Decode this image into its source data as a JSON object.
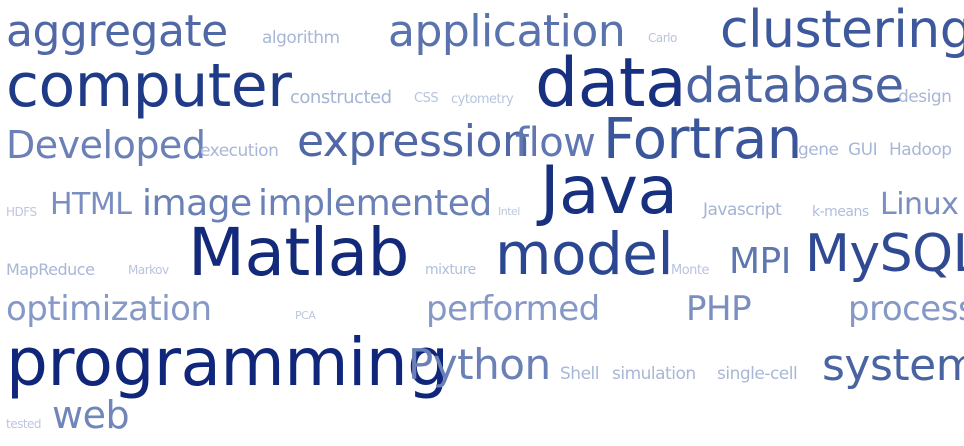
{
  "word_cloud": {
    "words": [
      {
        "text": "aggregate",
        "weight": 0.42,
        "color": "#5069a6"
      },
      {
        "text": "algorithm",
        "weight": 0.12,
        "color": "#a8b7d6"
      },
      {
        "text": "application",
        "weight": 0.42,
        "color": "#5a72ad"
      },
      {
        "text": "Carlo",
        "weight": 0.08,
        "color": "#b8c4de"
      },
      {
        "text": "clustering",
        "weight": 0.55,
        "color": "#3d589c"
      },
      {
        "text": "computer",
        "weight": 0.72,
        "color": "#1f3b88"
      },
      {
        "text": "data",
        "weight": 0.85,
        "color": "#17307f"
      },
      {
        "text": "database",
        "weight": 0.48,
        "color": "#4a64a2"
      },
      {
        "text": "constructed",
        "weight": 0.15,
        "color": "#a4b4d4"
      },
      {
        "text": "CSS",
        "weight": 0.08,
        "color": "#b8c4de"
      },
      {
        "text": "cytometry",
        "weight": 0.08,
        "color": "#b8c4de"
      },
      {
        "text": "design",
        "weight": 0.12,
        "color": "#a8b7d6"
      },
      {
        "text": "Developed",
        "weight": 0.4,
        "color": "#6a80b6"
      },
      {
        "text": "execution",
        "weight": 0.12,
        "color": "#a8b7d6"
      },
      {
        "text": "expression",
        "weight": 0.5,
        "color": "#5069a6"
      },
      {
        "text": "flow",
        "weight": 0.45,
        "color": "#6078b1"
      },
      {
        "text": "Fortran",
        "weight": 0.65,
        "color": "#3a559a"
      },
      {
        "text": "gene",
        "weight": 0.12,
        "color": "#a8b7d6"
      },
      {
        "text": "GUI",
        "weight": 0.12,
        "color": "#a8b7d6"
      },
      {
        "text": "Hadoop",
        "weight": 0.12,
        "color": "#a8b7d6"
      },
      {
        "text": "HDFS",
        "weight": 0.06,
        "color": "#bcc7df"
      },
      {
        "text": "HTML",
        "weight": 0.3,
        "color": "#7a8ebf"
      },
      {
        "text": "image",
        "weight": 0.38,
        "color": "#6a80b6"
      },
      {
        "text": "implemented",
        "weight": 0.38,
        "color": "#6a80b6"
      },
      {
        "text": "Intel",
        "weight": 0.06,
        "color": "#bcc7df"
      },
      {
        "text": "Java",
        "weight": 0.82,
        "color": "#17307f"
      },
      {
        "text": "Javascript",
        "weight": 0.15,
        "color": "#a4b4d4"
      },
      {
        "text": "k-means",
        "weight": 0.1,
        "color": "#b0bedb"
      },
      {
        "text": "Linux",
        "weight": 0.3,
        "color": "#7a8ebf"
      },
      {
        "text": "MapReduce",
        "weight": 0.12,
        "color": "#a8b7d6"
      },
      {
        "text": "Markov",
        "weight": 0.08,
        "color": "#b8c4de"
      },
      {
        "text": "Matlab",
        "weight": 0.9,
        "color": "#13297a"
      },
      {
        "text": "mixture",
        "weight": 0.1,
        "color": "#b0bedb"
      },
      {
        "text": "model",
        "weight": 0.65,
        "color": "#2c4791"
      },
      {
        "text": "Monte",
        "weight": 0.08,
        "color": "#b8c4de"
      },
      {
        "text": "MPI",
        "weight": 0.38,
        "color": "#5f77b0"
      },
      {
        "text": "MySQL",
        "weight": 0.6,
        "color": "#2f4a93"
      },
      {
        "text": "optimization",
        "weight": 0.35,
        "color": "#8598c6"
      },
      {
        "text": "PCA",
        "weight": 0.06,
        "color": "#bcc7df"
      },
      {
        "text": "performed",
        "weight": 0.35,
        "color": "#8598c6"
      },
      {
        "text": "PHP",
        "weight": 0.35,
        "color": "#7a8ebf"
      },
      {
        "text": "process",
        "weight": 0.35,
        "color": "#8598c6"
      },
      {
        "text": "programming",
        "weight": 0.95,
        "color": "#10267a"
      },
      {
        "text": "Python",
        "weight": 0.45,
        "color": "#6a80b6"
      },
      {
        "text": "Shell",
        "weight": 0.12,
        "color": "#a8b7d6"
      },
      {
        "text": "simulation",
        "weight": 0.12,
        "color": "#a8b7d6"
      },
      {
        "text": "single-cell",
        "weight": 0.12,
        "color": "#a8b7d6"
      },
      {
        "text": "system",
        "weight": 0.48,
        "color": "#4a64a2"
      },
      {
        "text": "tested",
        "weight": 0.06,
        "color": "#bcc7df"
      },
      {
        "text": "web",
        "weight": 0.38,
        "color": "#7086bb"
      }
    ]
  }
}
